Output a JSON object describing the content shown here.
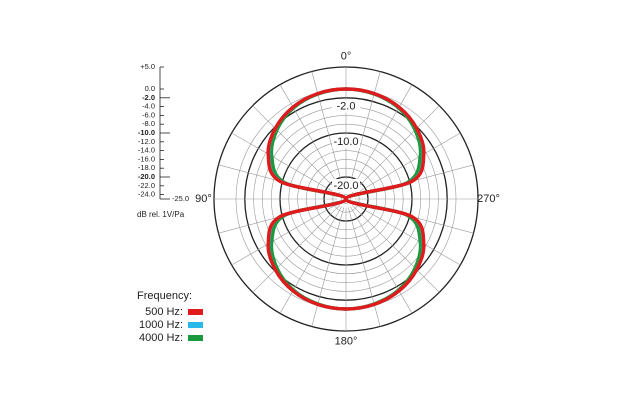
{
  "chart_data": {
    "type": "polar",
    "angle_labels": [
      {
        "value": 0,
        "label": "0°"
      },
      {
        "value": 90,
        "label": "90°"
      },
      {
        "value": 180,
        "label": "180°"
      },
      {
        "value": 270,
        "label": "270°"
      }
    ],
    "rlim": [
      -25,
      5
    ],
    "rticks": [
      {
        "value": 5,
        "label": "+5.0"
      },
      {
        "value": 0,
        "label": "0.0"
      },
      {
        "value": -2,
        "label": "-2.0"
      },
      {
        "value": -4,
        "label": "-4.0"
      },
      {
        "value": -6,
        "label": "-6.0"
      },
      {
        "value": -8,
        "label": "-8.0"
      },
      {
        "value": -10,
        "label": "-10.0"
      },
      {
        "value": -12,
        "label": "-12.0"
      },
      {
        "value": -14,
        "label": "-14.0"
      },
      {
        "value": -16,
        "label": "-16.0"
      },
      {
        "value": -18,
        "label": "-18.0"
      },
      {
        "value": -20,
        "label": "-20.0"
      },
      {
        "value": -22,
        "label": "-22.0"
      },
      {
        "value": -24,
        "label": "-24.0"
      },
      {
        "value": -25,
        "label": "-25.0"
      }
    ],
    "ring_labels": [
      {
        "value": -2,
        "label": "-2.0"
      },
      {
        "value": -10,
        "label": "-10.0"
      },
      {
        "value": -20,
        "label": "-20.0"
      }
    ],
    "r_axis_label": "dB rel. 1V/Pa",
    "legend_title": "Frequency:",
    "angles": [
      0,
      15,
      30,
      45,
      60,
      75,
      90,
      105,
      120,
      135,
      150,
      165,
      180,
      195,
      210,
      225,
      240,
      255,
      270,
      285,
      300,
      315,
      330,
      345
    ],
    "series": [
      {
        "name": "4000 Hz:",
        "color": "#1a9a3c",
        "values": [
          0,
          -0.3,
          -1.1,
          -2.8,
          -5.5,
          -10.5,
          -25,
          -10.5,
          -5.5,
          -2.8,
          -1.1,
          -0.3,
          0,
          -0.3,
          -1.1,
          -2.8,
          -5.5,
          -10.5,
          -25,
          -10.5,
          -5.5,
          -2.8,
          -1.1,
          -0.3
        ]
      },
      {
        "name": "1000 Hz:",
        "color": "#29b8e8",
        "values": [
          0,
          -0.2,
          -0.9,
          -2.3,
          -4.7,
          -9.6,
          -25,
          -9.6,
          -4.7,
          -2.3,
          -0.9,
          -0.2,
          0,
          -0.2,
          -0.9,
          -2.3,
          -4.7,
          -9.6,
          -25,
          -9.6,
          -4.7,
          -2.3,
          -0.9,
          -0.2
        ]
      },
      {
        "name": "500 Hz:",
        "color": "#e01b1b",
        "values": [
          0,
          -0.2,
          -0.9,
          -2.3,
          -4.6,
          -9.5,
          -25,
          -9.5,
          -4.6,
          -2.3,
          -0.9,
          -0.2,
          0,
          -0.2,
          -0.9,
          -2.3,
          -4.6,
          -9.5,
          -25,
          -9.5,
          -4.6,
          -2.3,
          -0.9,
          -0.2
        ]
      }
    ]
  }
}
